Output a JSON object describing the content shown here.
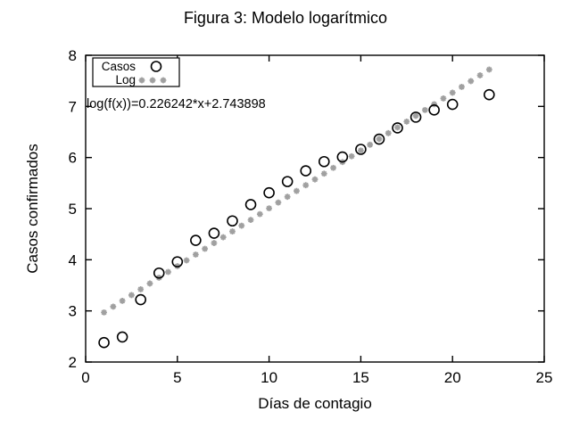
{
  "figure": {
    "title": "Figura 3: Modelo logarítmico"
  },
  "chart_data": {
    "type": "scatter",
    "title": "Figura 3: Modelo logarítmico",
    "xlabel": "Días de contagio",
    "ylabel": "Casos confirmados",
    "xlim": [
      0,
      25
    ],
    "ylim": [
      2,
      8
    ],
    "xticks": [
      0,
      5,
      10,
      15,
      20,
      25
    ],
    "yticks": [
      2,
      3,
      4,
      5,
      6,
      7,
      8
    ],
    "grid": false,
    "legend_position": "top-left",
    "annotation": "log(f(x))=0.226242*x+2.743898",
    "series": [
      {
        "name": "Casos",
        "marker": "open-circle",
        "color": "#000000",
        "x": [
          1,
          2,
          3,
          4,
          5,
          6,
          7,
          8,
          9,
          10,
          11,
          12,
          13,
          14,
          15,
          16,
          17,
          18,
          19,
          20,
          22
        ],
        "y": [
          2.38,
          2.49,
          3.22,
          3.74,
          3.96,
          4.38,
          4.52,
          4.76,
          5.08,
          5.31,
          5.53,
          5.74,
          5.92,
          6.01,
          6.16,
          6.36,
          6.58,
          6.79,
          6.93,
          7.04,
          7.23
        ]
      },
      {
        "name": "Log",
        "marker": "asterisk",
        "color": "#a0a0a0",
        "fit": {
          "slope": 0.226242,
          "intercept": 2.743898,
          "x_start": 1,
          "x_end": 22,
          "x_step": 0.5
        }
      }
    ]
  },
  "colors": {
    "background": "#ffffff",
    "axis": "#000000",
    "casos_marker": "#000000",
    "log_marker": "#a0a0a0"
  }
}
